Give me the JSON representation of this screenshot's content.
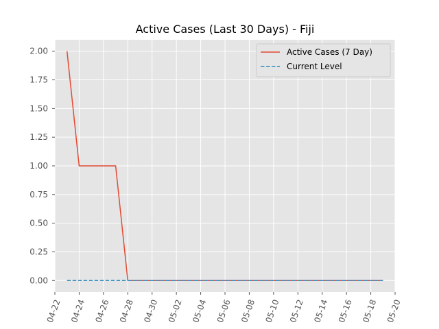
{
  "chart_data": {
    "type": "line",
    "title": "Active Cases (Last 30 Days) - Fiji",
    "xlabel": "",
    "ylabel": "",
    "x_type": "date",
    "x_year": 2020,
    "xlim": [
      "2020-04-22",
      "2020-05-20"
    ],
    "ylim": [
      -0.1,
      2.1
    ],
    "x_tick_dates": [
      "2020-04-22",
      "2020-04-24",
      "2020-04-26",
      "2020-04-28",
      "2020-04-30",
      "2020-05-02",
      "2020-05-04",
      "2020-05-06",
      "2020-05-08",
      "2020-05-10",
      "2020-05-12",
      "2020-05-14",
      "2020-05-16",
      "2020-05-18",
      "2020-05-20"
    ],
    "x_tick_labels": [
      "04-22",
      "04-24",
      "04-26",
      "04-28",
      "04-30",
      "05-02",
      "05-04",
      "05-06",
      "05-08",
      "05-10",
      "05-12",
      "05-14",
      "05-16",
      "05-18",
      "05-20"
    ],
    "y_ticks": [
      0.0,
      0.25,
      0.5,
      0.75,
      1.0,
      1.25,
      1.5,
      1.75,
      2.0
    ],
    "y_tick_labels": [
      "0.00",
      "0.25",
      "0.50",
      "0.75",
      "1.00",
      "1.25",
      "1.50",
      "1.75",
      "2.00"
    ],
    "grid": true,
    "legend_position": "top-right",
    "series": [
      {
        "name": "Active Cases (7 Day)",
        "color": "#E24A33",
        "style": "solid",
        "x": [
          "2020-04-23",
          "2020-04-24",
          "2020-04-25",
          "2020-04-26",
          "2020-04-27",
          "2020-04-28",
          "2020-04-29",
          "2020-04-30",
          "2020-05-01",
          "2020-05-02",
          "2020-05-03",
          "2020-05-04",
          "2020-05-05",
          "2020-05-06",
          "2020-05-07",
          "2020-05-08",
          "2020-05-09",
          "2020-05-10",
          "2020-05-11",
          "2020-05-12",
          "2020-05-13",
          "2020-05-14",
          "2020-05-15",
          "2020-05-16",
          "2020-05-17",
          "2020-05-18",
          "2020-05-19"
        ],
        "y": [
          2,
          1,
          1,
          1,
          1,
          0,
          0,
          0,
          0,
          0,
          0,
          0,
          0,
          0,
          0,
          0,
          0,
          0,
          0,
          0,
          0,
          0,
          0,
          0,
          0,
          0,
          0
        ]
      },
      {
        "name": "Current Level",
        "color": "#348ABD",
        "style": "dashed",
        "x": [
          "2020-04-23",
          "2020-05-19"
        ],
        "y": [
          0,
          0
        ]
      }
    ]
  }
}
